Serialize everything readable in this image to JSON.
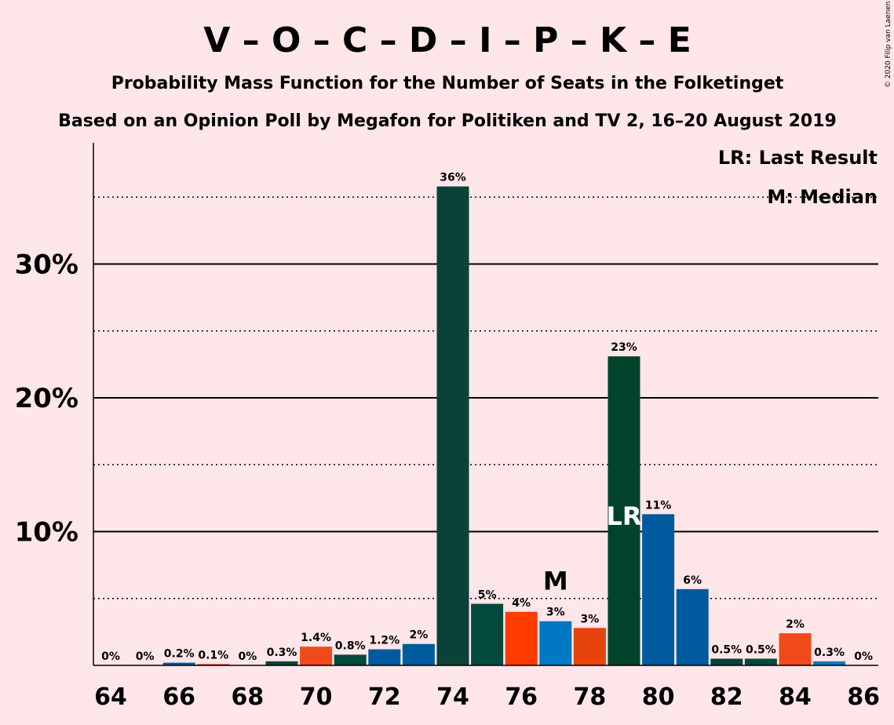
{
  "chart_data": {
    "type": "bar",
    "title": "V – O – C – D – I – P – K – E",
    "subtitle_lines": [
      "Probability Mass Function for the Number of Seats in the Folketinget",
      "Based on an Opinion Poll by Megafon for Politiken and TV 2, 16–20 August 2019"
    ],
    "copyright": "© 2020 Filip van Laenen",
    "x": [
      64,
      65,
      66,
      67,
      68,
      69,
      70,
      71,
      72,
      73,
      74,
      75,
      76,
      77,
      78,
      79,
      80,
      81,
      82,
      83,
      84,
      85,
      86
    ],
    "values": [
      0,
      0,
      0.2,
      0.1,
      0,
      0.3,
      1.4,
      0.8,
      1.2,
      1.6,
      35.8,
      4.6,
      4.0,
      3.3,
      2.8,
      23.1,
      11.3,
      5.7,
      0.5,
      0.5,
      2.4,
      0.3,
      0
    ],
    "labels": [
      "0%",
      "0%",
      "0.2%",
      "0.1%",
      "0%",
      "0.3%",
      "1.4%",
      "0.8%",
      "1.2%",
      "2%",
      "36%",
      "5%",
      "4%",
      "3%",
      "3%",
      "23%",
      "11%",
      "6%",
      "0.5%",
      "0.5%",
      "2%",
      "0.3%",
      "0%"
    ],
    "colors": [
      "#0A4238",
      "#034A3E",
      "#005B9E",
      "#F04A1A",
      "#FF3C00",
      "#0A4238",
      "#F04A1A",
      "#034A3E",
      "#005B9E",
      "#005B9E",
      "#0A4238",
      "#034A3E",
      "#FF3C00",
      "#0079C2",
      "#E7430E",
      "#00432A",
      "#005B9E",
      "#005B9E",
      "#0A4238",
      "#034A3E",
      "#F04A1A",
      "#0079C2",
      "#0A4238"
    ],
    "xticks": [
      64,
      66,
      68,
      70,
      72,
      74,
      76,
      78,
      80,
      82,
      84,
      86
    ],
    "xtick_labels": [
      "64",
      "66",
      "68",
      "70",
      "72",
      "74",
      "76",
      "78",
      "80",
      "82",
      "84",
      "86"
    ],
    "yticks": [
      10,
      20,
      30
    ],
    "ytick_labels": [
      "10%",
      "20%",
      "30%"
    ],
    "minor_gridlines": [
      5,
      15,
      25,
      35
    ],
    "ylim": [
      0,
      39
    ],
    "median_seat": 77,
    "median_marker": "M",
    "last_result_seat": 79,
    "last_result_marker": "LR",
    "legend": [
      "LR: Last Result",
      "M: Median"
    ],
    "legend_position": "top-right"
  }
}
